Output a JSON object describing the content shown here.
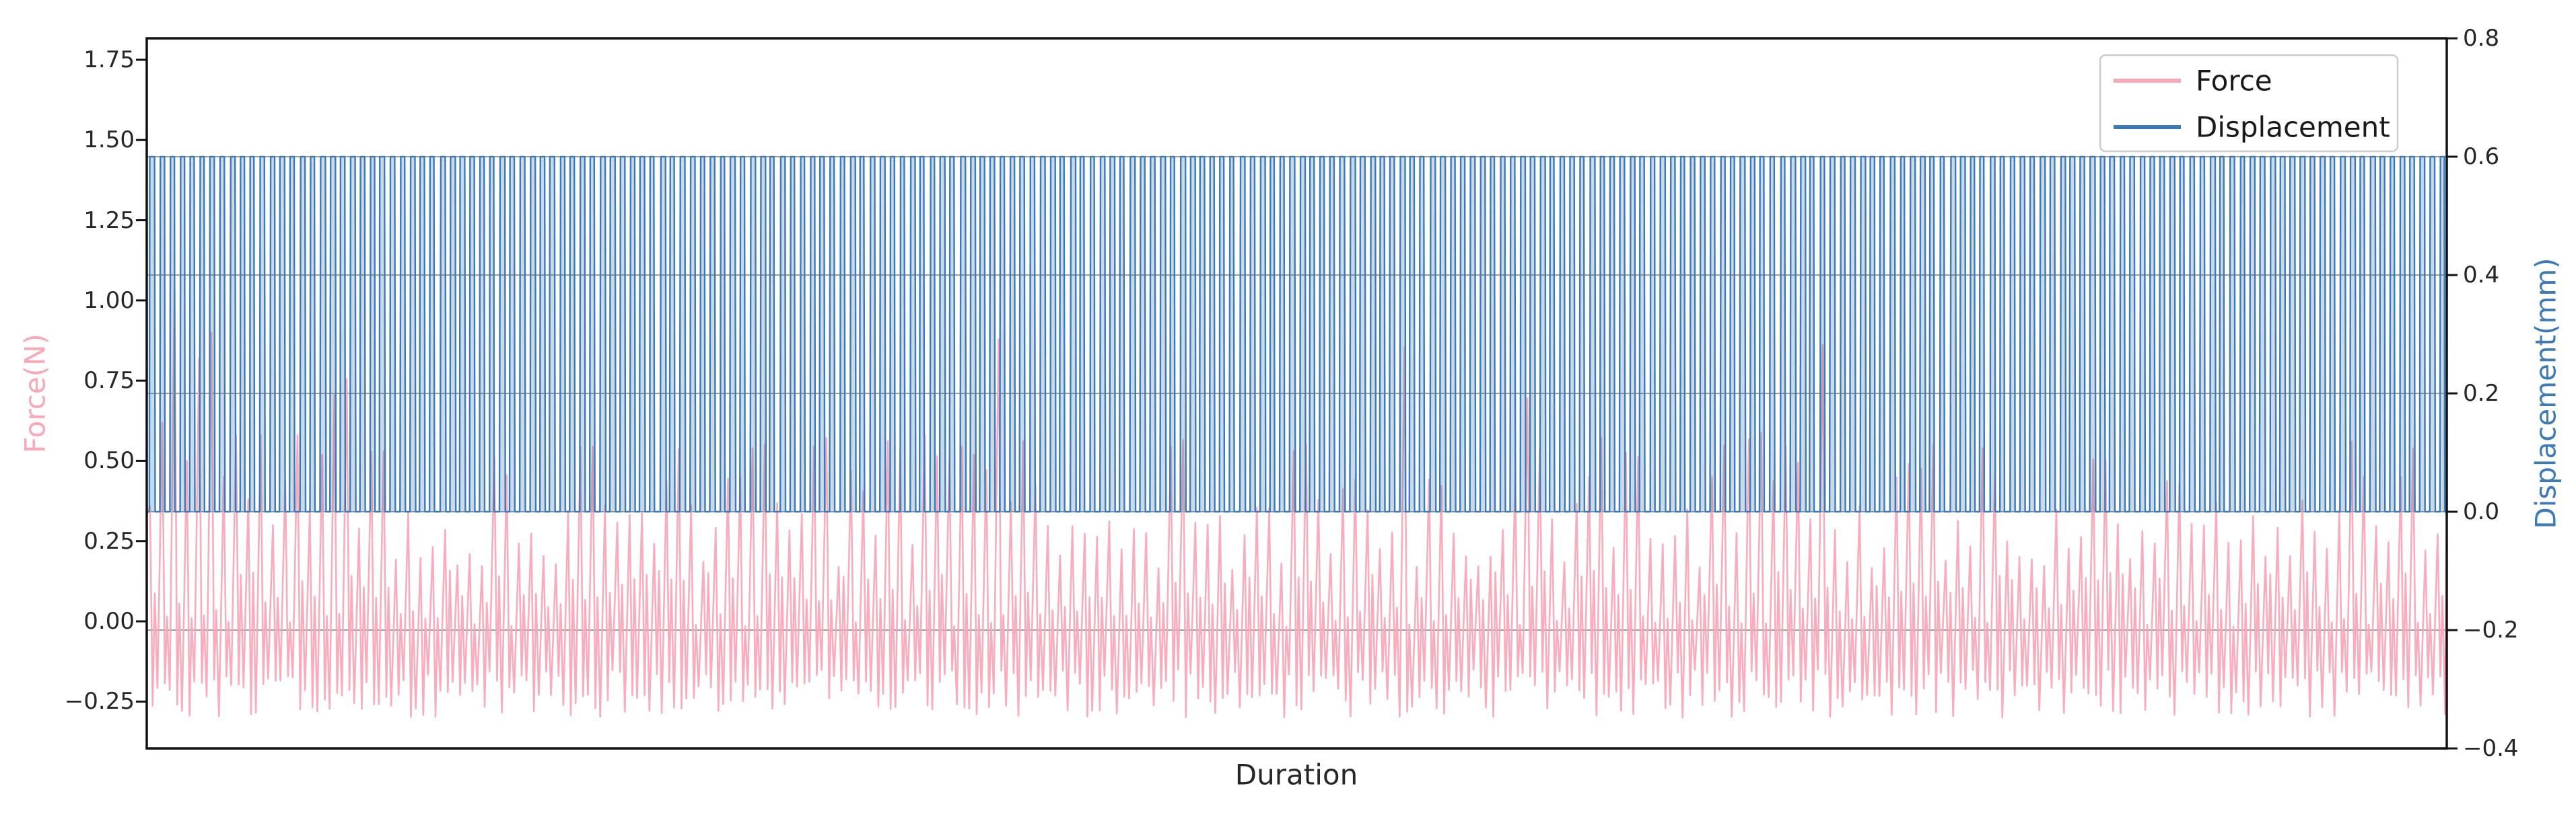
{
  "figure": {
    "background": "#ffffff"
  },
  "chart_data": {
    "type": "line",
    "title": "",
    "xlabel": "Duration",
    "x_axis": {
      "tick_labels": []
    },
    "left_axis": {
      "label": "Force(N)",
      "color": "#f9a8b8",
      "tick_labels": [
        "1.75",
        "1.50",
        "1.25",
        "1.00",
        "0.75",
        "0.50",
        "0.25",
        "0.00",
        "−0.25"
      ],
      "tick_values": [
        1.75,
        1.5,
        1.25,
        1.0,
        0.75,
        0.5,
        0.25,
        0.0,
        -0.25
      ],
      "range": [
        -0.396,
        1.817
      ]
    },
    "right_axis": {
      "label": "Displacement(mm)",
      "color": "#3d7ab7",
      "tick_labels": [
        "0.8",
        "0.6",
        "0.4",
        "0.2",
        "0.0",
        "−0.2",
        "−0.4"
      ],
      "tick_values": [
        0.8,
        0.6,
        0.4,
        0.2,
        0.0,
        -0.2,
        -0.4
      ],
      "range": [
        -0.4,
        0.8
      ]
    },
    "grid": {
      "show": true,
      "source_axis": "right",
      "values": [
        0.6,
        0.4,
        0.2,
        0.0,
        -0.2
      ],
      "color": "#9a9a9a"
    },
    "legend": {
      "location": "upper right",
      "entries": [
        {
          "label": "Force",
          "color": "#f9a8b8"
        },
        {
          "label": "Displacement",
          "color": "#3d7ab7"
        }
      ]
    },
    "series": [
      {
        "name": "Force",
        "axis": "left",
        "color": "#f9a8b8",
        "line_width": 2.6,
        "pattern": "spiky-oscillation",
        "cycles": 187,
        "seed": 20,
        "start_value": 0.33,
        "end_value": 0.33,
        "initial_peaks": [
          0.36,
          0.62,
          1.04,
          0.5,
          0.82,
          0.9,
          0.45,
          0.58,
          0.38,
          0.58,
          0.3,
          0.44,
          0.58,
          0.35,
          0.52
        ],
        "peak_medium_range": [
          0.16,
          0.38
        ],
        "peak_tall_range": [
          0.4,
          0.58
        ],
        "tall_pair_chance": 0.22,
        "extra_tall_chance": 0.03,
        "extra_tall_range": [
          0.58,
          0.92
        ],
        "trough_range": [
          -0.3,
          -0.15
        ],
        "inter_bump_range": [
          -0.02,
          0.16
        ]
      },
      {
        "name": "Displacement",
        "axis": "right",
        "color": "#3d7ab7",
        "line_width": 2.4,
        "fill_opacity": 0.28,
        "pattern": "square",
        "cycles": 230,
        "seed": 7,
        "low": 0.0,
        "high": 0.6
      }
    ]
  }
}
